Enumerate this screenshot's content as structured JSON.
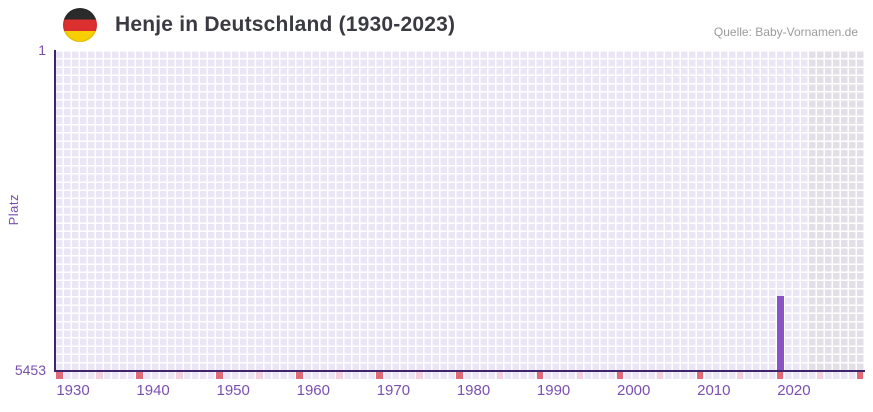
{
  "header": {
    "title": "Henje in Deutschland (1930-2023)",
    "source": "Quelle: Baby-Vornamen.de",
    "flag_icon": "german-flag"
  },
  "chart_data": {
    "type": "bar",
    "title": "Henje in Deutschland (1930-2023)",
    "xlabel": "",
    "ylabel": "Platz",
    "y_axis": {
      "direction": "inverted",
      "min": 1,
      "max": 5453,
      "min_label": "1",
      "max_label": "5453"
    },
    "x_axis": {
      "start_year": 1930,
      "end_year": 2030,
      "data_range": [
        1930,
        2023
      ],
      "tick_years": [
        1930,
        1940,
        1950,
        1960,
        1970,
        1980,
        1990,
        2000,
        2010,
        2020
      ]
    },
    "series": [
      {
        "name": "Platz",
        "points": [
          {
            "year": 2020,
            "value": 4200
          }
        ],
        "note": "only one ranked year visible; all other years have no rank bar"
      }
    ],
    "no_data_band": {
      "from_year": 2024,
      "to_year": 2030
    },
    "axis_markers": {
      "decade_years": [
        1930,
        1940,
        1950,
        1960,
        1970,
        1980,
        1990,
        2000,
        2010,
        2020,
        2030
      ],
      "half_decade_years": [
        1935,
        1945,
        1955,
        1965,
        1975,
        1985,
        1995,
        2005,
        2015,
        2025
      ]
    },
    "grid": "checkered lavender cells, one column per year",
    "legend": "none",
    "colors": {
      "bar": "#8a52c6",
      "grid_cell": "#ebe6f6",
      "grid_cell_dim": "#e2dfe9",
      "axis_line": "#40246c",
      "tick_text": "#7a4fb0",
      "decade_marker": "#e26a78",
      "half_decade_marker": "#f2cfdc",
      "title_text": "#3a3a42",
      "source_text": "#9b9b9b"
    }
  }
}
